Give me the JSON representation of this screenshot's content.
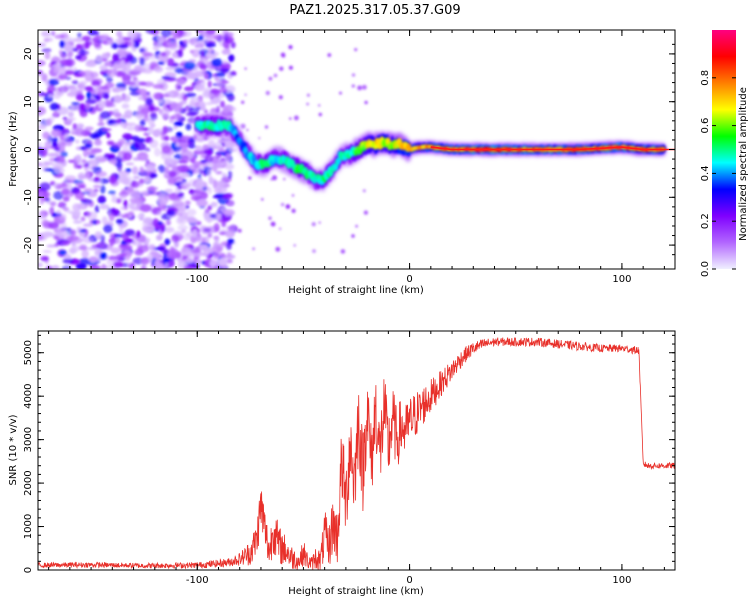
{
  "title": "PAZ1.2025.317.05.37.G09",
  "chart_data": [
    {
      "type": "heatmap",
      "title": "PAZ1.2025.317.05.37.G09",
      "xlabel": "Height of straight line (km)",
      "ylabel": "Frequency (Hz)",
      "xlim": [
        -175,
        125
      ],
      "ylim": [
        -25,
        25
      ],
      "xticks": [
        -100,
        0,
        100
      ],
      "yticks": [
        -20,
        -10,
        0,
        10,
        20
      ],
      "colorbar": {
        "label": "Normalized spectral amplitude",
        "range": [
          0.0,
          1.0
        ],
        "ticks": [
          "0.0",
          "0.2",
          "0.4",
          "0.6",
          "0.8"
        ],
        "colors": [
          "#f0f0ff",
          "#b266ff",
          "#7f00ff",
          "#0000ff",
          "#00ffff",
          "#00ff00",
          "#ffff00",
          "#ff7f00",
          "#ff0000",
          "#ff0080"
        ]
      },
      "noise_region": {
        "x": [
          -175,
          -83
        ],
        "y": [
          -25,
          25
        ]
      },
      "ridge": {
        "x": [
          -100,
          -90,
          -85,
          -80,
          -76,
          -72,
          -68,
          -64,
          -60,
          -56,
          -52,
          -48,
          -44,
          -40,
          -36,
          -32,
          -28,
          -24,
          -20,
          -16,
          -12,
          -8,
          -4,
          0,
          5,
          10,
          20,
          40,
          60,
          80,
          100,
          110,
          120
        ],
        "freq": [
          5,
          5,
          5,
          2,
          -1,
          -3,
          -3,
          -2,
          -2,
          -3,
          -4,
          -5,
          -6.5,
          -6,
          -4,
          -1,
          -1,
          0,
          1,
          1,
          1.5,
          1,
          1,
          0,
          0.5,
          0.5,
          0,
          0,
          0,
          0,
          0.5,
          0,
          0
        ],
        "amplitude": [
          0.5,
          0.55,
          0.5,
          0.4,
          0.45,
          0.5,
          0.55,
          0.5,
          0.5,
          0.5,
          0.6,
          0.55,
          0.5,
          0.55,
          0.5,
          0.5,
          0.55,
          0.6,
          0.7,
          0.75,
          0.75,
          0.7,
          0.8,
          0.85,
          0.8,
          0.85,
          0.9,
          0.95,
          0.9,
          0.9,
          0.95,
          0.9,
          0.9
        ]
      }
    },
    {
      "type": "line",
      "xlabel": "Height of straight line (km)",
      "ylabel": "SNR (10 * v/v)",
      "xlim": [
        -175,
        125
      ],
      "ylim": [
        0,
        5500
      ],
      "xticks": [
        -100,
        0,
        100
      ],
      "yticks": [
        0,
        1000,
        2000,
        3000,
        4000,
        5000
      ],
      "color": "#e8302a",
      "series": [
        {
          "name": "SNR",
          "x": [
            -175,
            -150,
            -125,
            -100,
            -90,
            -85,
            -80,
            -75,
            -72,
            -70,
            -68,
            -66,
            -64,
            -62,
            -60,
            -58,
            -56,
            -54,
            -52,
            -50,
            -48,
            -46,
            -44,
            -42,
            -40,
            -38,
            -36,
            -34,
            -32,
            -30,
            -28,
            -26,
            -24,
            -22,
            -20,
            -18,
            -16,
            -14,
            -12,
            -10,
            -8,
            -6,
            -4,
            -2,
            0,
            5,
            10,
            15,
            20,
            25,
            30,
            35,
            40,
            50,
            60,
            70,
            80,
            90,
            100,
            108,
            110,
            112,
            125
          ],
          "y": [
            110,
            120,
            100,
            110,
            150,
            180,
            250,
            400,
            700,
            1500,
            900,
            400,
            1000,
            600,
            500,
            450,
            300,
            250,
            200,
            400,
            200,
            150,
            300,
            200,
            800,
            500,
            1100,
            700,
            2500,
            1500,
            3000,
            2000,
            3500,
            2200,
            3800,
            2400,
            3800,
            2600,
            3700,
            2800,
            3500,
            3000,
            3300,
            3200,
            3400,
            3700,
            4000,
            4300,
            4600,
            4900,
            5100,
            5200,
            5250,
            5250,
            5250,
            5200,
            5150,
            5100,
            5100,
            5050,
            2450,
            2400,
            2400
          ],
          "noise_amplitude": [
            60,
            60,
            60,
            70,
            90,
            100,
            150,
            300,
            450,
            600,
            500,
            400,
            600,
            500,
            400,
            350,
            300,
            250,
            200,
            300,
            200,
            150,
            300,
            250,
            600,
            500,
            700,
            600,
            900,
            900,
            1000,
            900,
            1000,
            900,
            1000,
            900,
            900,
            900,
            900,
            800,
            800,
            700,
            700,
            600,
            600,
            500,
            400,
            300,
            250,
            200,
            150,
            120,
            100,
            100,
            100,
            100,
            100,
            90,
            90,
            90,
            70,
            70,
            70
          ]
        }
      ]
    }
  ]
}
